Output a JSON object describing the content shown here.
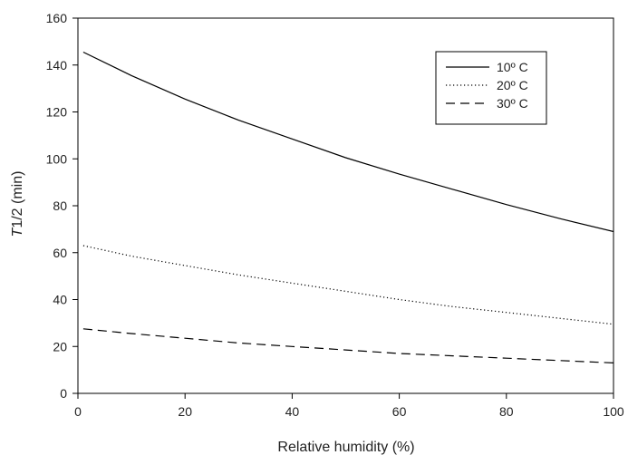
{
  "chart_data": {
    "type": "line",
    "xlabel": "Relative humidity (%)",
    "ylabel": {
      "italic": "T",
      "rest": "1/2 (min)"
    },
    "xlim": [
      0,
      100
    ],
    "ylim": [
      0,
      160
    ],
    "xticks": [
      0,
      20,
      40,
      60,
      80,
      100
    ],
    "yticks": [
      0,
      20,
      40,
      60,
      80,
      100,
      120,
      140,
      160
    ],
    "grid": false,
    "legend_position": "top-right",
    "series": [
      {
        "name": "10º C",
        "style": "solid",
        "color": "#000000",
        "x": [
          1,
          10,
          20,
          30,
          40,
          50,
          60,
          70,
          80,
          90,
          100
        ],
        "y": [
          145.5,
          135.5,
          125.5,
          116.5,
          108.5,
          100.5,
          93.5,
          87,
          80.5,
          74.5,
          69
        ]
      },
      {
        "name": "20º C",
        "style": "dotted",
        "color": "#000000",
        "x": [
          1,
          10,
          20,
          30,
          40,
          50,
          60,
          70,
          80,
          90,
          100
        ],
        "y": [
          63,
          58.5,
          54.5,
          50.5,
          47,
          43.5,
          40,
          37,
          34.5,
          32,
          29.5
        ]
      },
      {
        "name": "30º C",
        "style": "dashed",
        "color": "#000000",
        "x": [
          1,
          10,
          20,
          30,
          40,
          50,
          60,
          70,
          80,
          90,
          100
        ],
        "y": [
          27.5,
          25.5,
          23.5,
          21.5,
          20,
          18.5,
          17,
          16,
          15,
          14,
          13
        ]
      }
    ]
  }
}
